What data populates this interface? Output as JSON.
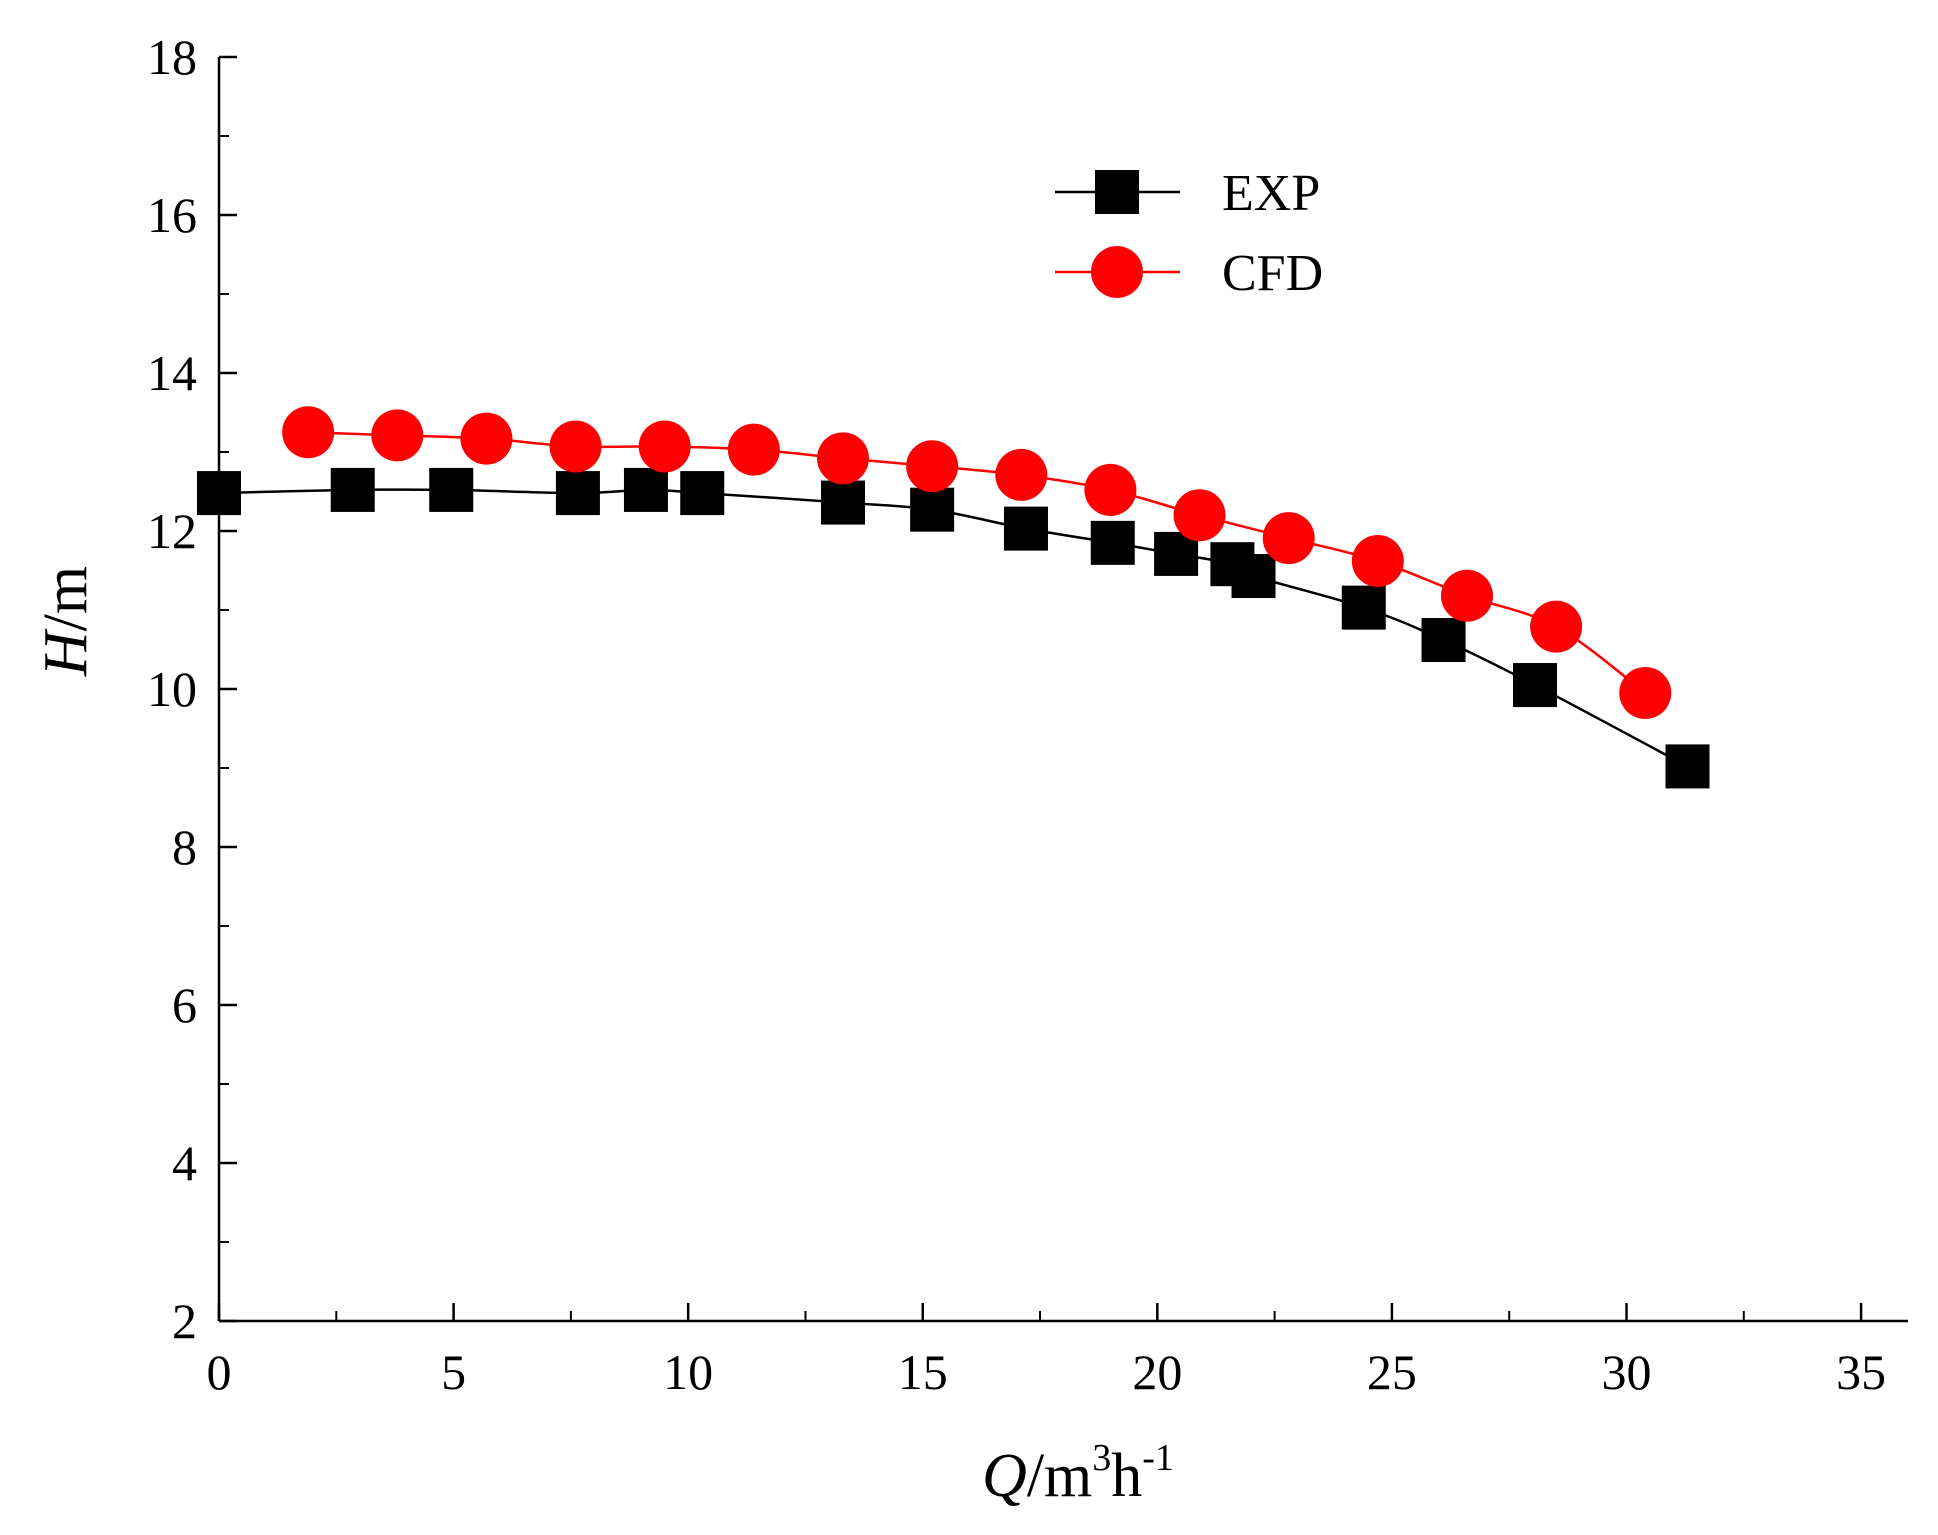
{
  "chart_data": {
    "type": "line",
    "title": "",
    "xlabel": {
      "italic": "Q",
      "unit": "/m",
      "sup1": "3",
      "mid": "h",
      "sup2": "-1"
    },
    "ylabel": {
      "italic": "H",
      "unit": "/m"
    },
    "xlim": [
      0,
      36
    ],
    "ylim": [
      2,
      18
    ],
    "xticks": [
      0,
      5,
      10,
      15,
      20,
      25,
      30,
      35
    ],
    "yticks": [
      2,
      4,
      6,
      8,
      10,
      12,
      14,
      16,
      18
    ],
    "grid": false,
    "legend_position": "top-center",
    "series": [
      {
        "name": "EXP",
        "color": "#000000",
        "marker": "square",
        "x": [
          0,
          2.85,
          4.95,
          7.65,
          9.1,
          10.3,
          13.3,
          15.2,
          17.2,
          19.05,
          20.4,
          21.6,
          22.05,
          24.4,
          26.1,
          28.05,
          31.3
        ],
        "y": [
          12.48,
          12.52,
          12.52,
          12.48,
          12.52,
          12.48,
          12.36,
          12.27,
          12.03,
          11.85,
          11.71,
          11.58,
          11.43,
          11.03,
          10.62,
          10.05,
          9.02
        ]
      },
      {
        "name": "CFD",
        "color": "#ff0000",
        "marker": "circle",
        "x": [
          1.9,
          3.8,
          5.7,
          7.6,
          9.5,
          11.4,
          13.3,
          15.2,
          17.1,
          19.0,
          20.9,
          22.8,
          24.7,
          26.6,
          28.5,
          30.4
        ],
        "y": [
          13.25,
          13.21,
          13.17,
          13.07,
          13.07,
          13.03,
          12.92,
          12.82,
          12.71,
          12.52,
          12.2,
          11.91,
          11.62,
          11.18,
          10.79,
          9.95
        ]
      }
    ]
  }
}
